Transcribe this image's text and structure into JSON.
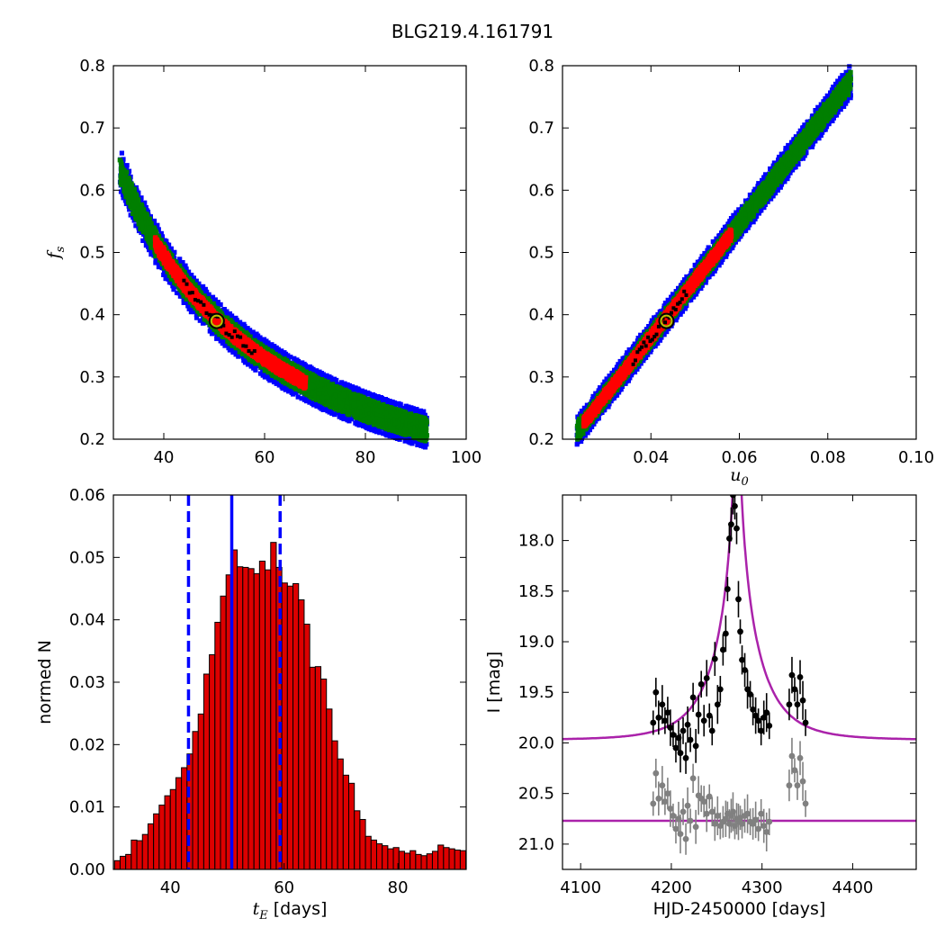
{
  "figure_title": "BLG219.4.161791",
  "colors": {
    "outer_contour": "#0000ff",
    "mid_contour": "#007f00",
    "inner_contour": "#ff0000",
    "chain_points": "#000000",
    "best_fit_marker": "#bfbf00",
    "hist_bar": "#dd0000",
    "hist_lines": "#0000ff",
    "model_curve": "#aa22aa",
    "data_primary": "#000000",
    "data_residual": "#808080"
  },
  "chart_data": [
    {
      "type": "heatmap",
      "panel": "top-left",
      "xlabel": "",
      "ylabel": "f_s",
      "xlim": [
        30,
        100
      ],
      "ylim": [
        0.2,
        0.8
      ],
      "xticks": [
        "40",
        "60",
        "80",
        "100"
      ],
      "yticks": [
        "0.2",
        "0.3",
        "0.4",
        "0.5",
        "0.6",
        "0.7",
        "0.8"
      ],
      "relation": "fs = 19.8 / tE",
      "x_range": [
        31.5,
        92
      ],
      "best_fit": {
        "x": 50.5,
        "y": 0.39
      },
      "bands": {
        "outer": 0.028,
        "mid": 0.018,
        "inner": 0.009
      },
      "inner_x_range": [
        38.5,
        68
      ],
      "chain_x_range": [
        44,
        58
      ]
    },
    {
      "type": "heatmap",
      "panel": "top-right",
      "xlabel": "u_0",
      "ylabel": "",
      "xlim": [
        0.02,
        0.1
      ],
      "ylim": [
        0.2,
        0.8
      ],
      "xticks": [
        "0.04",
        "0.06",
        "0.08",
        "0.10"
      ],
      "yticks": [
        "0.2",
        "0.3",
        "0.4",
        "0.5",
        "0.6",
        "0.7",
        "0.8"
      ],
      "relation": "fs = 9.1 * u0",
      "x_range": [
        0.0235,
        0.085
      ],
      "best_fit": {
        "x": 0.0435,
        "y": 0.39
      },
      "bands": {
        "outer": 0.022,
        "mid": 0.014,
        "inner": 0.008
      },
      "inner_x_range": [
        0.025,
        0.058
      ],
      "chain_x_range": [
        0.036,
        0.048
      ]
    },
    {
      "type": "bar",
      "panel": "bottom-left",
      "xlabel": "t_E [days]",
      "ylabel": "normed N",
      "xlim": [
        30,
        92
      ],
      "ylim": [
        0,
        0.06
      ],
      "xticks": [
        "40",
        "60",
        "80"
      ],
      "yticks": [
        "0.00",
        "0.01",
        "0.02",
        "0.03",
        "0.04",
        "0.05",
        "0.06"
      ],
      "bin_start": 30.2,
      "bin_width": 0.98,
      "values": [
        0.0014,
        0.0021,
        0.0024,
        0.0047,
        0.0046,
        0.0056,
        0.0073,
        0.0089,
        0.0103,
        0.0118,
        0.0128,
        0.0147,
        0.0163,
        0.0185,
        0.0221,
        0.0249,
        0.0313,
        0.0344,
        0.0396,
        0.0438,
        0.0472,
        0.0512,
        0.0485,
        0.0484,
        0.0482,
        0.0474,
        0.0494,
        0.048,
        0.0524,
        0.0484,
        0.0459,
        0.0454,
        0.0458,
        0.0432,
        0.0393,
        0.0324,
        0.0325,
        0.0305,
        0.0257,
        0.0206,
        0.0177,
        0.0151,
        0.0138,
        0.0094,
        0.008,
        0.0053,
        0.0047,
        0.0041,
        0.0038,
        0.0033,
        0.0035,
        0.0029,
        0.0026,
        0.003,
        0.0024,
        0.0022,
        0.0025,
        0.0029,
        0.0039,
        0.0035,
        0.0033,
        0.0031,
        0.003,
        0.0028,
        0.0022,
        0.0018,
        0.0012,
        0.0009,
        0.0008,
        0.0006,
        0.0004,
        0.0003
      ],
      "vlines": [
        {
          "x": 50.8,
          "style": "solid"
        },
        {
          "x": 43.2,
          "style": "dashed"
        },
        {
          "x": 59.3,
          "style": "dashed"
        }
      ]
    },
    {
      "type": "line",
      "panel": "bottom-right",
      "xlabel": "HJD-2450000 [days]",
      "ylabel": "I [mag]",
      "xlim": [
        4080,
        4470
      ],
      "ylim": [
        21.25,
        17.55
      ],
      "xticks": [
        "4100",
        "4200",
        "4300",
        "4400"
      ],
      "yticks": [
        "18.0",
        "18.5",
        "19.0",
        "19.5",
        "20.0",
        "20.5",
        "21.0"
      ],
      "yaxis_inverted": true,
      "model": {
        "t0": 4272.5,
        "tE": 50.8,
        "u0": 0.0435,
        "baseline": 19.97
      },
      "residual_baseline": 20.77,
      "series": [
        {
          "kind": "primary",
          "x": [
            4180,
            4183,
            4186,
            4190,
            4193,
            4196,
            4199,
            4202,
            4205,
            4208,
            4210,
            4213,
            4216,
            4218,
            4221,
            4224,
            4227,
            4230,
            4233,
            4236,
            4239,
            4242,
            4245,
            4248,
            4251,
            4254,
            4257,
            4260,
            4262,
            4264,
            4266,
            4268,
            4270,
            4272,
            4274,
            4276,
            4278,
            4281,
            4284,
            4287,
            4290,
            4293,
            4296,
            4299,
            4302,
            4305,
            4308,
            4330,
            4333,
            4336,
            4339,
            4342,
            4345,
            4348
          ],
          "y": [
            19.8,
            19.5,
            19.75,
            19.62,
            19.78,
            19.7,
            19.85,
            19.92,
            20.05,
            19.95,
            20.1,
            19.88,
            20.15,
            19.82,
            19.97,
            19.55,
            20.03,
            19.72,
            19.42,
            19.78,
            19.36,
            19.73,
            19.88,
            19.17,
            19.62,
            19.47,
            19.08,
            18.92,
            18.48,
            17.98,
            17.84,
            17.55,
            17.66,
            17.88,
            18.58,
            18.9,
            19.18,
            19.28,
            19.47,
            19.52,
            19.67,
            19.73,
            19.78,
            19.88,
            19.75,
            19.7,
            19.83,
            19.62,
            19.33,
            19.47,
            19.62,
            19.35,
            19.58,
            19.8
          ]
        },
        {
          "kind": "residual",
          "x": [
            4180,
            4183,
            4186,
            4190,
            4193,
            4196,
            4199,
            4202,
            4205,
            4208,
            4210,
            4213,
            4216,
            4218,
            4221,
            4224,
            4227,
            4230,
            4233,
            4236,
            4239,
            4242,
            4245,
            4248,
            4251,
            4254,
            4257,
            4260,
            4262,
            4264,
            4266,
            4268,
            4270,
            4272,
            4274,
            4276,
            4278,
            4281,
            4284,
            4287,
            4290,
            4293,
            4296,
            4299,
            4302,
            4305,
            4308,
            4330,
            4333,
            4336,
            4339,
            4342,
            4345,
            4348
          ],
          "y": [
            20.6,
            20.3,
            20.55,
            20.42,
            20.58,
            20.5,
            20.65,
            20.72,
            20.85,
            20.75,
            20.9,
            20.68,
            20.95,
            20.62,
            20.77,
            20.35,
            20.83,
            20.52,
            20.55,
            20.58,
            20.7,
            20.53,
            20.68,
            20.8,
            20.72,
            20.82,
            20.78,
            20.75,
            20.7,
            20.8,
            20.72,
            20.68,
            20.82,
            20.75,
            20.78,
            20.74,
            20.8,
            20.72,
            20.7,
            20.78,
            20.8,
            20.76,
            20.85,
            20.7,
            20.82,
            20.88,
            20.78,
            20.42,
            20.13,
            20.27,
            20.42,
            20.15,
            20.38,
            20.6
          ]
        }
      ]
    }
  ]
}
